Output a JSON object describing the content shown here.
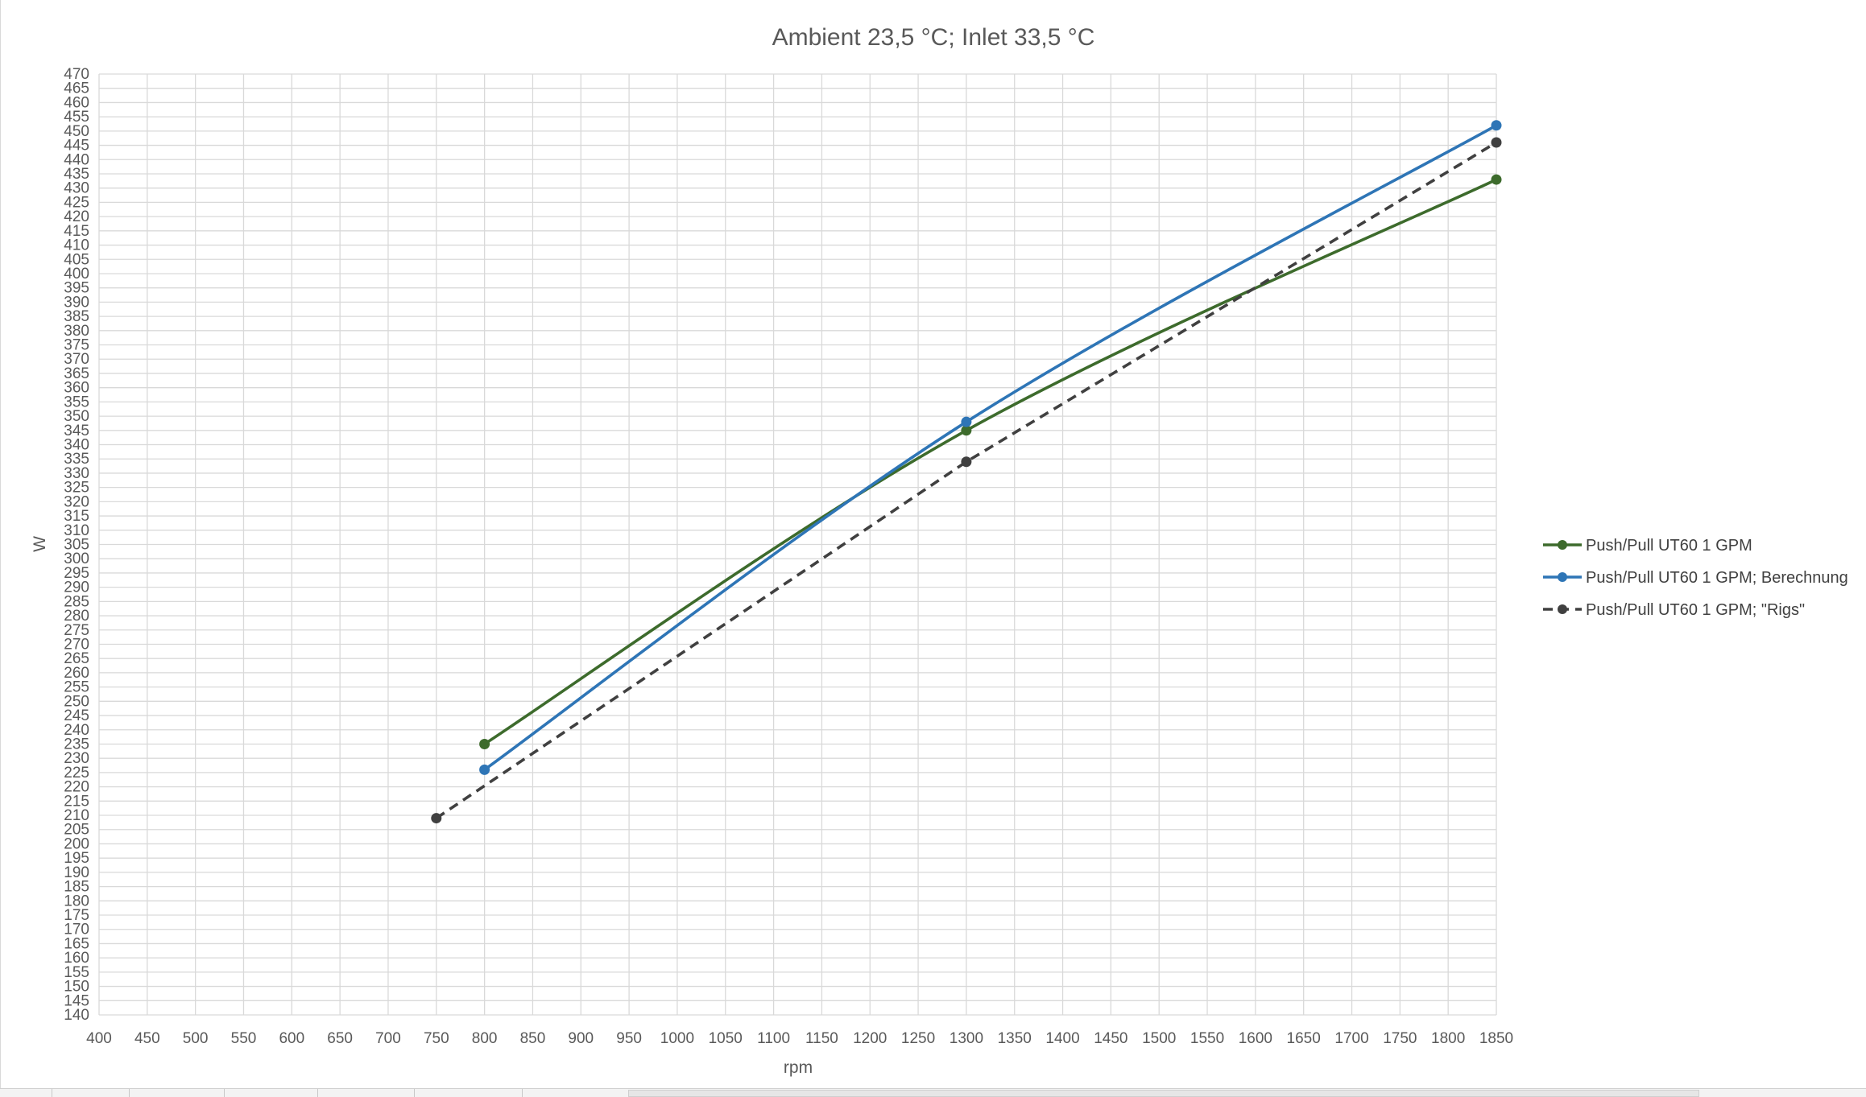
{
  "chart_data": {
    "type": "line",
    "title": "Ambient 23,5 °C; Inlet 33,5 °C",
    "xlabel": "rpm",
    "ylabel": "W",
    "xlim": [
      400,
      1850
    ],
    "ylim": [
      140,
      470
    ],
    "x_ticks": [
      400,
      450,
      500,
      550,
      600,
      650,
      700,
      750,
      800,
      850,
      900,
      950,
      1000,
      1050,
      1100,
      1150,
      1200,
      1250,
      1300,
      1350,
      1400,
      1450,
      1500,
      1550,
      1600,
      1650,
      1700,
      1750,
      1800,
      1850
    ],
    "y_ticks": [
      140,
      145,
      150,
      155,
      160,
      165,
      170,
      175,
      180,
      185,
      190,
      195,
      200,
      205,
      210,
      215,
      220,
      225,
      230,
      235,
      240,
      245,
      250,
      255,
      260,
      265,
      270,
      275,
      280,
      285,
      290,
      295,
      300,
      305,
      310,
      315,
      320,
      325,
      330,
      335,
      340,
      345,
      350,
      355,
      360,
      365,
      370,
      375,
      380,
      385,
      390,
      395,
      400,
      405,
      410,
      415,
      420,
      425,
      430,
      435,
      440,
      445,
      450,
      455,
      460,
      465,
      470
    ],
    "grid": true,
    "legend_position": "right",
    "series": [
      {
        "name": "Push/Pull UT60 1 GPM",
        "color": "#3d6b2c",
        "dashed": false,
        "smooth": true,
        "x": [
          800,
          1300,
          1850
        ],
        "y": [
          235,
          345,
          433
        ]
      },
      {
        "name": "Push/Pull UT60 1 GPM; Berechnung",
        "color": "#2e75b6",
        "dashed": false,
        "smooth": true,
        "x": [
          800,
          1300,
          1850
        ],
        "y": [
          226,
          348,
          452
        ]
      },
      {
        "name": "Push/Pull UT60 1 GPM; \"Rigs\"",
        "color": "#404040",
        "dashed": true,
        "smooth": false,
        "x": [
          750,
          1300,
          1850
        ],
        "y": [
          209,
          334,
          446
        ]
      }
    ]
  }
}
